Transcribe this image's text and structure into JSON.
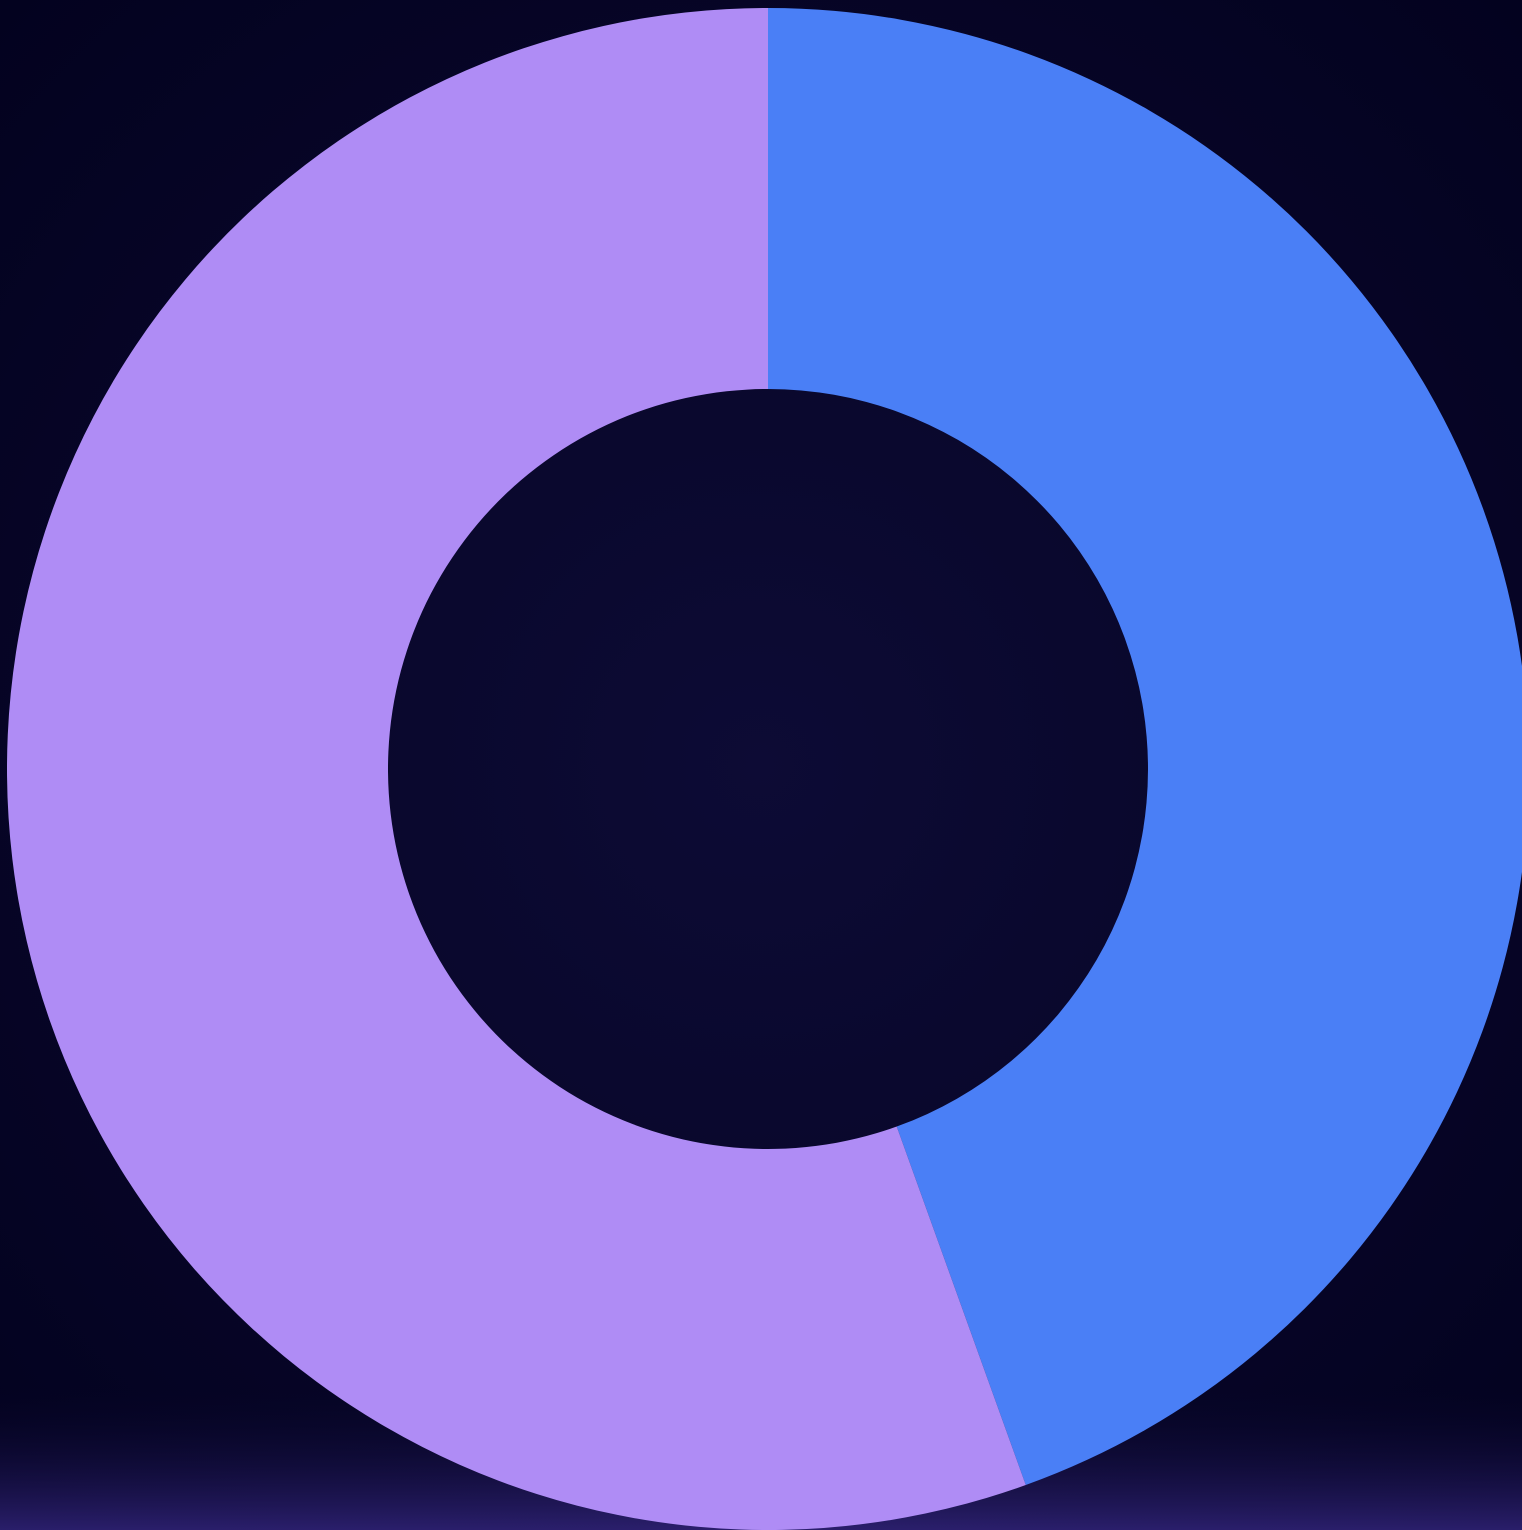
{
  "chart_data": {
    "type": "donut",
    "values": [
      44.5,
      55.5
    ],
    "colors": [
      "#4a7ff6",
      "#af8cf5"
    ]
  }
}
